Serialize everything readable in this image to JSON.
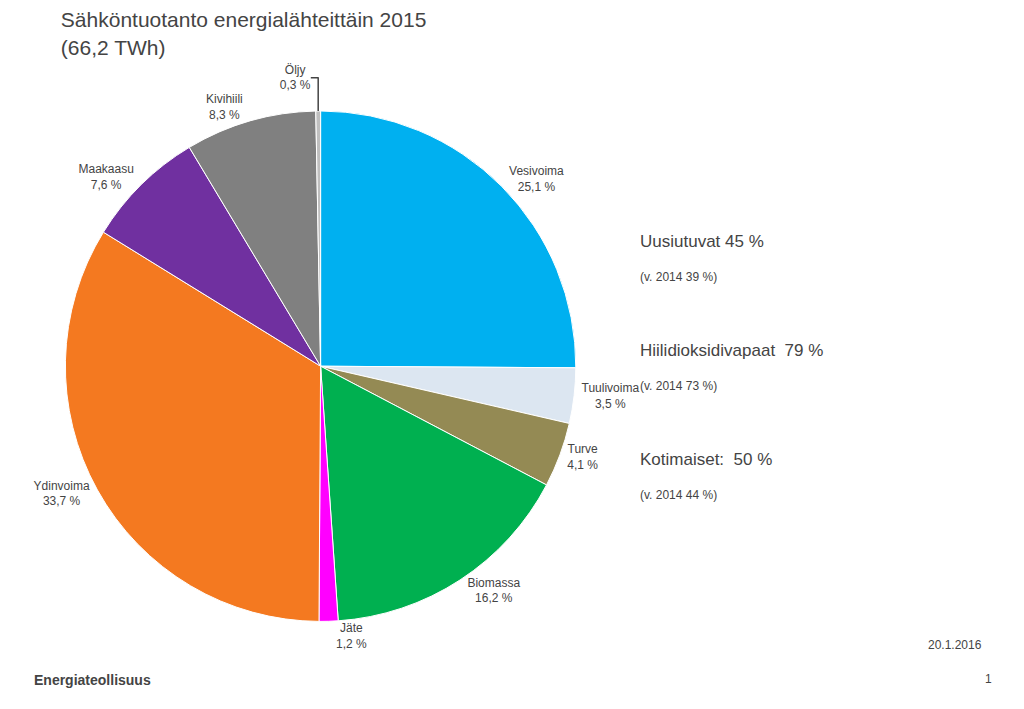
{
  "chart_data": {
    "type": "pie",
    "title": "Sähköntuotanto energialähteittäin 2015",
    "subtitle": "(66,2 TWh)",
    "categories": [
      "Vesivoima",
      "Tuulivoima",
      "Turve",
      "Biomassa",
      "Jäte",
      "Ydinvoima",
      "Maakaasu",
      "Kivihiili",
      "Öljy"
    ],
    "values": [
      25.1,
      3.5,
      4.1,
      16.2,
      1.2,
      33.7,
      7.6,
      8.3,
      0.3
    ],
    "value_labels": [
      "25,1 %",
      "3,5 %",
      "4,1 %",
      "16,2 %",
      "1,2 %",
      "33,7 %",
      "7,6 %",
      "8,3 %",
      "0,3 %"
    ],
    "colors": [
      "#00b0f0",
      "#dce6f1",
      "#948a54",
      "#00b050",
      "#ff00ff",
      "#f47920",
      "#7030a0",
      "#808080",
      "#bfbfbf"
    ],
    "annotations": [
      "Uusiutuvat 45 %",
      "(v. 2014 39 %)",
      "Hiilidioksidivapaat  79 %",
      "(v. 2014 73 %)",
      "Kotimaiset:  50 %",
      "(v. 2014 44 %)",
      "20.1.2016",
      "1",
      "Energiateollisuus"
    ]
  }
}
